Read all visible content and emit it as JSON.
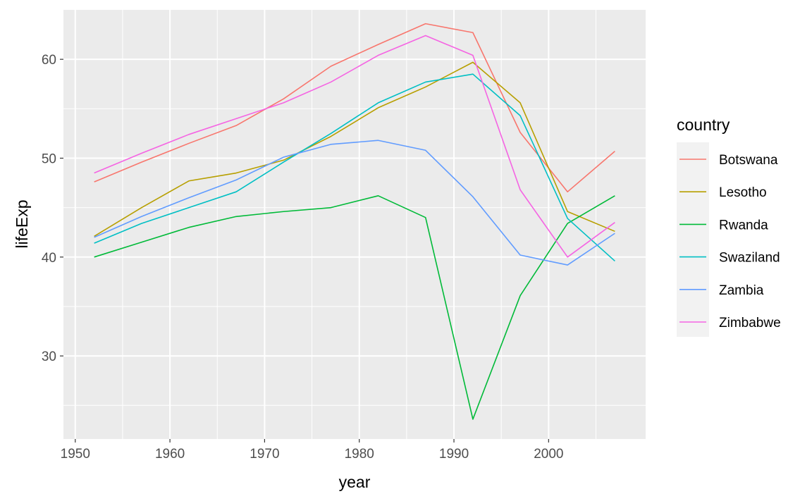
{
  "chart_data": {
    "type": "line",
    "xlabel": "year",
    "ylabel": "lifeExp",
    "xlim": [
      1948.75,
      2010.25
    ],
    "ylim": [
      21.6,
      65.0
    ],
    "x_ticks": [
      1950,
      1960,
      1970,
      1980,
      1990,
      2000
    ],
    "x_tick_labels": [
      "1950",
      "1960",
      "1970",
      "1980",
      "1990",
      "2000"
    ],
    "y_ticks": [
      30,
      40,
      50,
      60
    ],
    "y_tick_labels": [
      "30",
      "40",
      "50",
      "60"
    ],
    "grid": true,
    "panel_background": "#ebebeb",
    "legend": {
      "title": "country",
      "position": "right"
    },
    "x": [
      1952,
      1957,
      1962,
      1967,
      1972,
      1977,
      1982,
      1987,
      1992,
      1997,
      2002,
      2007
    ],
    "series": [
      {
        "name": "Botswana",
        "color": "#F8766D",
        "values": [
          47.6,
          49.6,
          51.5,
          53.3,
          56.0,
          59.3,
          61.5,
          63.6,
          62.7,
          52.6,
          46.6,
          50.7
        ]
      },
      {
        "name": "Lesotho",
        "color": "#B79F00",
        "values": [
          42.1,
          45.0,
          47.7,
          48.5,
          49.8,
          52.2,
          55.1,
          57.2,
          59.7,
          55.6,
          44.6,
          42.6
        ]
      },
      {
        "name": "Rwanda",
        "color": "#00BA38",
        "values": [
          40.0,
          41.5,
          43.0,
          44.1,
          44.6,
          45.0,
          46.2,
          44.0,
          23.6,
          36.1,
          43.4,
          46.2
        ]
      },
      {
        "name": "Swaziland",
        "color": "#00BFC4",
        "values": [
          41.4,
          43.4,
          45.0,
          46.6,
          49.6,
          52.5,
          55.6,
          57.7,
          58.5,
          54.3,
          43.9,
          39.6
        ]
      },
      {
        "name": "Zambia",
        "color": "#619CFF",
        "values": [
          42.0,
          44.1,
          46.0,
          47.8,
          50.1,
          51.4,
          51.8,
          50.8,
          46.1,
          40.2,
          39.2,
          42.4
        ]
      },
      {
        "name": "Zimbabwe",
        "color": "#F564E3",
        "values": [
          48.5,
          50.5,
          52.4,
          54.0,
          55.6,
          57.7,
          60.4,
          62.4,
          60.4,
          46.8,
          40.0,
          43.5
        ]
      }
    ]
  }
}
